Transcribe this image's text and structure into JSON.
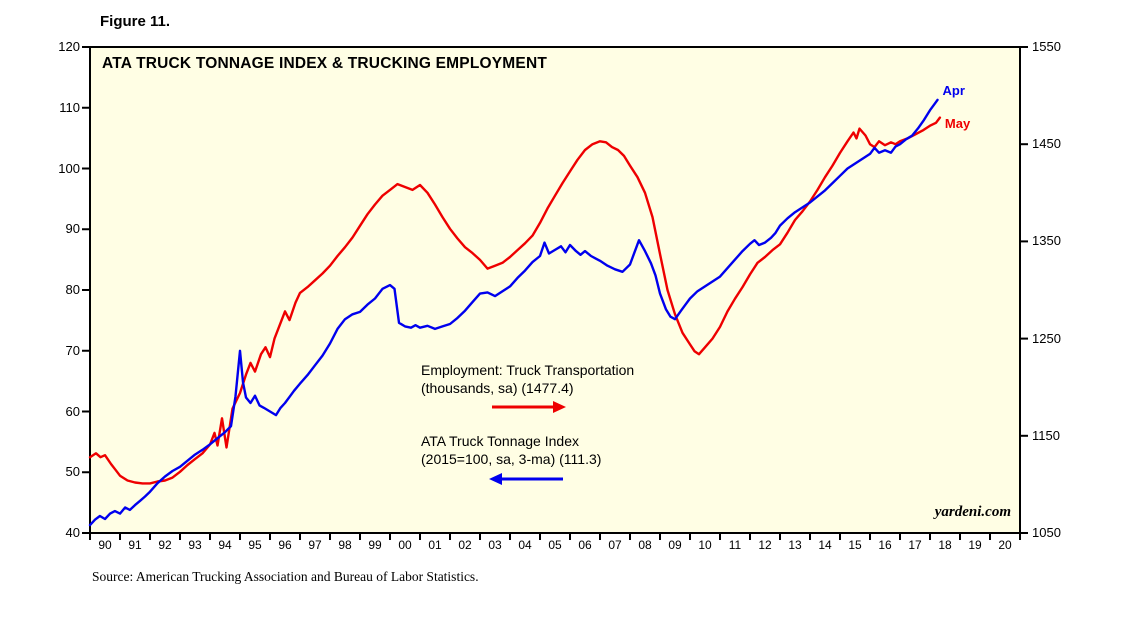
{
  "figure_label": "Figure 11.",
  "title": "ATA TRUCK TONNAGE INDEX & TRUCKING EMPLOYMENT",
  "watermark": "yardeni.com",
  "source": "Source: American Trucking Association and Bureau of Labor Statistics.",
  "colors": {
    "employment": "#ee0000",
    "tonnage": "#0000ee",
    "plot_bg": "#fffee4",
    "frame": "#000000"
  },
  "legend": {
    "employment": {
      "line1": "Employment: Truck Transportation",
      "line2": "(thousands, sa) (1477.4)",
      "arrow": "right"
    },
    "tonnage": {
      "line1": "ATA Truck Tonnage Index",
      "line2": "(2015=100, sa, 3-ma) (111.3)",
      "arrow": "left"
    }
  },
  "chart_data": {
    "type": "line",
    "title": "ATA TRUCK TONNAGE INDEX & TRUCKING EMPLOYMENT",
    "x_range": [
      1990,
      2021
    ],
    "x_tick_labels": [
      "90",
      "91",
      "92",
      "93",
      "94",
      "95",
      "96",
      "97",
      "98",
      "99",
      "00",
      "01",
      "02",
      "03",
      "04",
      "05",
      "06",
      "07",
      "08",
      "09",
      "10",
      "11",
      "12",
      "13",
      "14",
      "15",
      "16",
      "17",
      "18",
      "19",
      "20"
    ],
    "grid": false,
    "left_axis": {
      "label": "ATA Truck Tonnage Index (2015=100)",
      "range": [
        40,
        120
      ],
      "ticks": [
        40,
        50,
        60,
        70,
        80,
        90,
        100,
        110,
        120
      ]
    },
    "right_axis": {
      "label": "Employment: Truck Transportation (thousands)",
      "range": [
        1050,
        1550
      ],
      "ticks": [
        1050,
        1150,
        1250,
        1350,
        1450,
        1550
      ]
    },
    "series": [
      {
        "name": "Employment: Truck Transportation (thousands, sa)",
        "axis": "right",
        "color": "#ee0000",
        "latest": {
          "label": "May",
          "value": 1477.4
        },
        "points": [
          [
            1990,
            1128
          ],
          [
            1990.2,
            1132
          ],
          [
            1990.35,
            1128
          ],
          [
            1990.5,
            1130
          ],
          [
            1990.7,
            1121
          ],
          [
            1990.85,
            1115
          ],
          [
            1991,
            1109
          ],
          [
            1991.25,
            1104
          ],
          [
            1991.5,
            1102
          ],
          [
            1991.75,
            1101
          ],
          [
            1992,
            1101
          ],
          [
            1992.25,
            1103
          ],
          [
            1992.5,
            1104
          ],
          [
            1992.75,
            1107
          ],
          [
            1993,
            1113
          ],
          [
            1993.25,
            1120
          ],
          [
            1993.5,
            1126
          ],
          [
            1993.75,
            1132
          ],
          [
            1994,
            1141
          ],
          [
            1994.15,
            1153
          ],
          [
            1994.25,
            1140
          ],
          [
            1994.4,
            1168
          ],
          [
            1994.55,
            1138
          ],
          [
            1994.75,
            1178
          ],
          [
            1995,
            1194
          ],
          [
            1995.2,
            1213
          ],
          [
            1995.35,
            1225
          ],
          [
            1995.5,
            1216
          ],
          [
            1995.7,
            1234
          ],
          [
            1995.85,
            1241
          ],
          [
            1996,
            1231
          ],
          [
            1996.15,
            1250
          ],
          [
            1996.3,
            1262
          ],
          [
            1996.5,
            1278
          ],
          [
            1996.65,
            1269
          ],
          [
            1996.85,
            1287
          ],
          [
            1997,
            1297
          ],
          [
            1997.25,
            1303
          ],
          [
            1997.5,
            1310
          ],
          [
            1997.75,
            1317
          ],
          [
            1998,
            1325
          ],
          [
            1998.25,
            1335
          ],
          [
            1998.5,
            1344
          ],
          [
            1998.75,
            1354
          ],
          [
            1999,
            1366
          ],
          [
            1999.25,
            1378
          ],
          [
            1999.5,
            1388
          ],
          [
            1999.75,
            1397
          ],
          [
            2000,
            1403
          ],
          [
            2000.25,
            1409
          ],
          [
            2000.5,
            1406
          ],
          [
            2000.75,
            1403
          ],
          [
            2001,
            1408
          ],
          [
            2001.25,
            1400
          ],
          [
            2001.5,
            1388
          ],
          [
            2001.75,
            1375
          ],
          [
            2002,
            1363
          ],
          [
            2002.25,
            1353
          ],
          [
            2002.5,
            1344
          ],
          [
            2002.75,
            1338
          ],
          [
            2003,
            1331
          ],
          [
            2003.25,
            1322
          ],
          [
            2003.5,
            1325
          ],
          [
            2003.75,
            1328
          ],
          [
            2004,
            1334
          ],
          [
            2004.25,
            1341
          ],
          [
            2004.5,
            1348
          ],
          [
            2004.75,
            1356
          ],
          [
            2005,
            1369
          ],
          [
            2005.25,
            1384
          ],
          [
            2005.5,
            1397
          ],
          [
            2005.75,
            1410
          ],
          [
            2006,
            1422
          ],
          [
            2006.25,
            1434
          ],
          [
            2006.5,
            1444
          ],
          [
            2006.75,
            1450
          ],
          [
            2007,
            1453
          ],
          [
            2007.2,
            1452
          ],
          [
            2007.4,
            1447
          ],
          [
            2007.6,
            1444
          ],
          [
            2007.8,
            1438
          ],
          [
            2008,
            1428
          ],
          [
            2008.25,
            1416
          ],
          [
            2008.5,
            1400
          ],
          [
            2008.75,
            1375
          ],
          [
            2009,
            1337
          ],
          [
            2009.25,
            1300
          ],
          [
            2009.5,
            1275
          ],
          [
            2009.75,
            1256
          ],
          [
            2010,
            1244
          ],
          [
            2010.15,
            1237
          ],
          [
            2010.3,
            1234
          ],
          [
            2010.5,
            1241
          ],
          [
            2010.75,
            1250
          ],
          [
            2011,
            1262
          ],
          [
            2011.25,
            1278
          ],
          [
            2011.5,
            1291
          ],
          [
            2011.75,
            1303
          ],
          [
            2012,
            1316
          ],
          [
            2012.25,
            1328
          ],
          [
            2012.5,
            1334
          ],
          [
            2012.75,
            1341
          ],
          [
            2013,
            1347
          ],
          [
            2013.25,
            1359
          ],
          [
            2013.5,
            1372
          ],
          [
            2013.75,
            1381
          ],
          [
            2014,
            1391
          ],
          [
            2014.25,
            1403
          ],
          [
            2014.5,
            1416
          ],
          [
            2014.75,
            1428
          ],
          [
            2015,
            1441
          ],
          [
            2015.25,
            1453
          ],
          [
            2015.45,
            1462
          ],
          [
            2015.55,
            1456
          ],
          [
            2015.65,
            1466
          ],
          [
            2015.85,
            1459
          ],
          [
            2016,
            1450
          ],
          [
            2016.15,
            1447
          ],
          [
            2016.3,
            1453
          ],
          [
            2016.5,
            1449
          ],
          [
            2016.7,
            1452
          ],
          [
            2016.85,
            1450
          ],
          [
            2017,
            1453
          ],
          [
            2017.25,
            1456
          ],
          [
            2017.5,
            1460
          ],
          [
            2017.75,
            1464
          ],
          [
            2018,
            1469
          ],
          [
            2018.2,
            1472
          ],
          [
            2018.33,
            1477.4
          ]
        ]
      },
      {
        "name": "ATA Truck Tonnage Index (2015=100, sa, 3-ma)",
        "axis": "left",
        "color": "#0000ee",
        "latest": {
          "label": "Apr",
          "value": 111.3
        },
        "points": [
          [
            1990,
            41.3
          ],
          [
            1990.17,
            42.2
          ],
          [
            1990.33,
            42.8
          ],
          [
            1990.5,
            42.3
          ],
          [
            1990.67,
            43.2
          ],
          [
            1990.83,
            43.6
          ],
          [
            1991,
            43.2
          ],
          [
            1991.17,
            44.2
          ],
          [
            1991.33,
            43.8
          ],
          [
            1991.5,
            44.6
          ],
          [
            1991.67,
            45.3
          ],
          [
            1991.83,
            46
          ],
          [
            1992,
            46.8
          ],
          [
            1992.25,
            48.2
          ],
          [
            1992.5,
            49.3
          ],
          [
            1992.75,
            50.2
          ],
          [
            1993,
            50.9
          ],
          [
            1993.25,
            51.9
          ],
          [
            1993.5,
            52.9
          ],
          [
            1993.75,
            53.7
          ],
          [
            1994,
            54.6
          ],
          [
            1994.25,
            55.6
          ],
          [
            1994.5,
            56.6
          ],
          [
            1994.7,
            57.6
          ],
          [
            1994.85,
            62.5
          ],
          [
            1995,
            70
          ],
          [
            1995.1,
            64.8
          ],
          [
            1995.2,
            62.3
          ],
          [
            1995.35,
            61.4
          ],
          [
            1995.5,
            62.6
          ],
          [
            1995.65,
            61
          ],
          [
            1995.8,
            60.6
          ],
          [
            1996,
            60
          ],
          [
            1996.2,
            59.4
          ],
          [
            1996.35,
            60.6
          ],
          [
            1996.5,
            61.4
          ],
          [
            1996.65,
            62.4
          ],
          [
            1996.8,
            63.4
          ],
          [
            1997,
            64.6
          ],
          [
            1997.25,
            66
          ],
          [
            1997.5,
            67.6
          ],
          [
            1997.75,
            69.2
          ],
          [
            1998,
            71.2
          ],
          [
            1998.25,
            73.6
          ],
          [
            1998.5,
            75.2
          ],
          [
            1998.75,
            76
          ],
          [
            1999,
            76.4
          ],
          [
            1999.25,
            77.6
          ],
          [
            1999.5,
            78.6
          ],
          [
            1999.75,
            80.2
          ],
          [
            2000,
            80.8
          ],
          [
            2000.15,
            80.2
          ],
          [
            2000.3,
            74.6
          ],
          [
            2000.5,
            74
          ],
          [
            2000.7,
            73.8
          ],
          [
            2000.85,
            74.2
          ],
          [
            2001,
            73.8
          ],
          [
            2001.25,
            74.1
          ],
          [
            2001.5,
            73.6
          ],
          [
            2001.75,
            74
          ],
          [
            2002,
            74.4
          ],
          [
            2002.25,
            75.4
          ],
          [
            2002.5,
            76.6
          ],
          [
            2002.75,
            78
          ],
          [
            2003,
            79.4
          ],
          [
            2003.25,
            79.6
          ],
          [
            2003.5,
            79
          ],
          [
            2003.75,
            79.8
          ],
          [
            2004,
            80.6
          ],
          [
            2004.25,
            82
          ],
          [
            2004.5,
            83.2
          ],
          [
            2004.75,
            84.6
          ],
          [
            2005,
            85.6
          ],
          [
            2005.15,
            87.8
          ],
          [
            2005.3,
            86
          ],
          [
            2005.5,
            86.6
          ],
          [
            2005.7,
            87.2
          ],
          [
            2005.85,
            86.2
          ],
          [
            2006,
            87.4
          ],
          [
            2006.2,
            86.4
          ],
          [
            2006.35,
            85.8
          ],
          [
            2006.5,
            86.4
          ],
          [
            2006.7,
            85.6
          ],
          [
            2006.85,
            85.2
          ],
          [
            2007,
            84.8
          ],
          [
            2007.25,
            84
          ],
          [
            2007.5,
            83.4
          ],
          [
            2007.75,
            83
          ],
          [
            2008,
            84.2
          ],
          [
            2008.15,
            86.2
          ],
          [
            2008.3,
            88.2
          ],
          [
            2008.5,
            86.4
          ],
          [
            2008.7,
            84.4
          ],
          [
            2008.85,
            82.4
          ],
          [
            2009,
            79.4
          ],
          [
            2009.2,
            76.8
          ],
          [
            2009.35,
            75.6
          ],
          [
            2009.5,
            75.2
          ],
          [
            2009.7,
            76.6
          ],
          [
            2009.85,
            77.6
          ],
          [
            2010,
            78.6
          ],
          [
            2010.25,
            79.8
          ],
          [
            2010.5,
            80.6
          ],
          [
            2010.75,
            81.4
          ],
          [
            2011,
            82.2
          ],
          [
            2011.25,
            83.6
          ],
          [
            2011.5,
            85
          ],
          [
            2011.75,
            86.4
          ],
          [
            2012,
            87.6
          ],
          [
            2012.15,
            88.2
          ],
          [
            2012.3,
            87.4
          ],
          [
            2012.5,
            87.8
          ],
          [
            2012.7,
            88.6
          ],
          [
            2012.85,
            89.4
          ],
          [
            2013,
            90.6
          ],
          [
            2013.25,
            91.8
          ],
          [
            2013.5,
            92.8
          ],
          [
            2013.75,
            93.6
          ],
          [
            2014,
            94.4
          ],
          [
            2014.25,
            95.4
          ],
          [
            2014.5,
            96.4
          ],
          [
            2014.75,
            97.6
          ],
          [
            2015,
            98.8
          ],
          [
            2015.25,
            100
          ],
          [
            2015.5,
            100.8
          ],
          [
            2015.75,
            101.6
          ],
          [
            2016,
            102.4
          ],
          [
            2016.15,
            103.4
          ],
          [
            2016.3,
            102.6
          ],
          [
            2016.5,
            103
          ],
          [
            2016.7,
            102.6
          ],
          [
            2016.85,
            103.6
          ],
          [
            2017,
            104
          ],
          [
            2017.2,
            104.8
          ],
          [
            2017.4,
            105.4
          ],
          [
            2017.6,
            106.6
          ],
          [
            2017.8,
            108
          ],
          [
            2018,
            109.6
          ],
          [
            2018.15,
            110.6
          ],
          [
            2018.25,
            111.3
          ]
        ]
      }
    ]
  }
}
